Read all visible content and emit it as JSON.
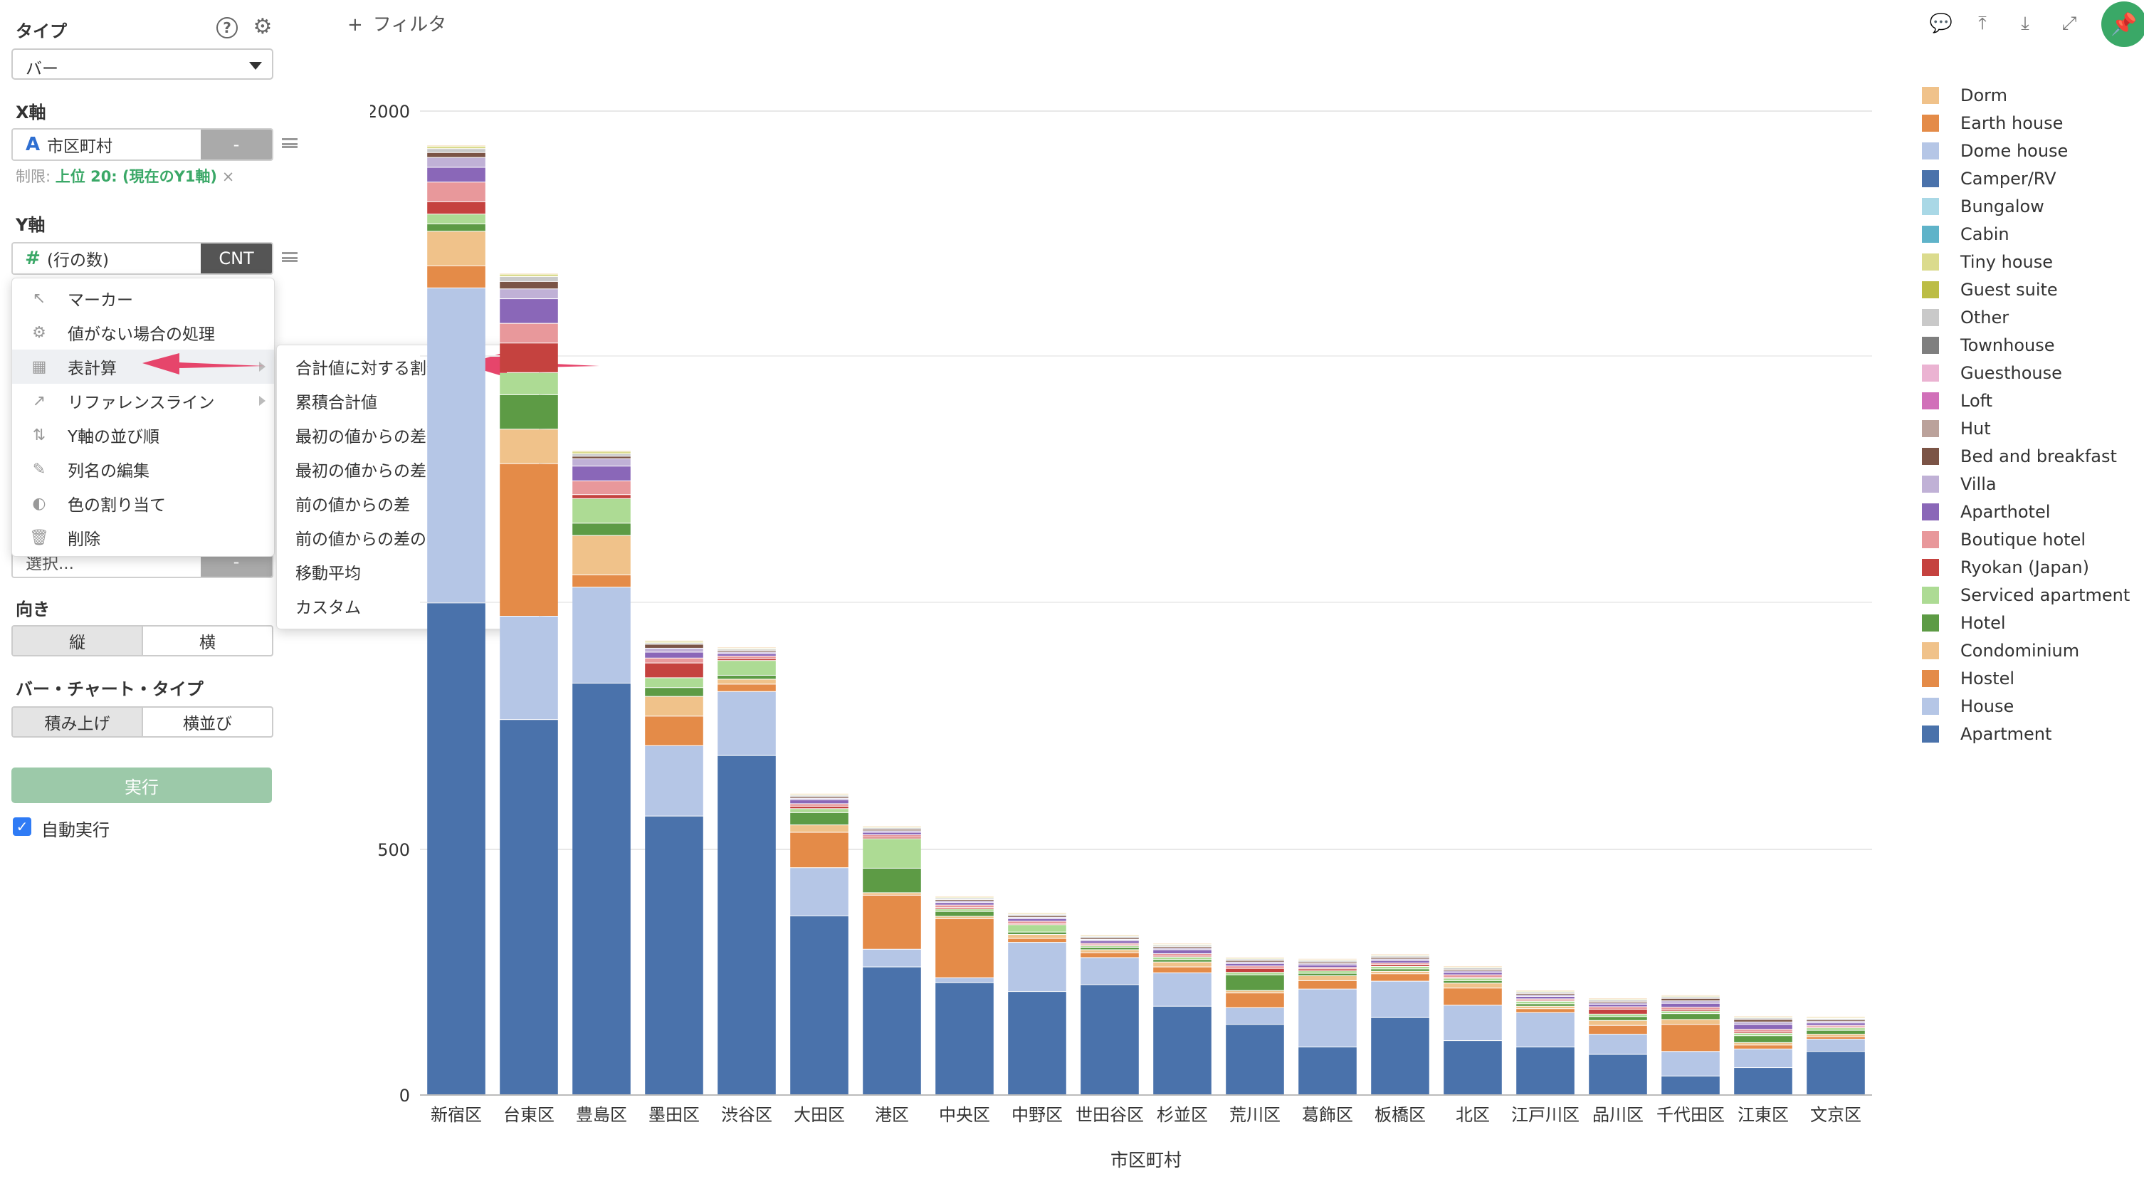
{
  "panel": {
    "type_label": "タイプ",
    "type_value": "バー",
    "x_label": "X軸",
    "x_field_icon": "A",
    "x_field": "市区町村",
    "x_agg": "-",
    "limit_prefix": "制限:",
    "limit_value": "上位 20: (現在のY1軸)",
    "limit_close": "×",
    "y_label": "Y軸",
    "y_field_icon": "#",
    "y_field": "(行の数)",
    "y_agg": "CNT",
    "hidden_select": "選択...",
    "hidden_agg": "-",
    "orientation_label": "向き",
    "orientation_options": [
      "縦",
      "横"
    ],
    "bar_type_label": "バー・チャート・タイプ",
    "bar_type_options": [
      "積み上げ",
      "横並び"
    ],
    "run_button": "実行",
    "auto_run": "自動実行"
  },
  "filter": {
    "plus": "+",
    "label": "フィルタ"
  },
  "context_menu": {
    "items": [
      {
        "icon": "cursor-icon",
        "label": "マーカー"
      },
      {
        "icon": "gear-icon",
        "label": "値がない場合の処理"
      },
      {
        "icon": "table-icon",
        "label": "表計算"
      },
      {
        "icon": "line-chart-icon",
        "label": "リファレンスライン"
      },
      {
        "icon": "sort-icon",
        "label": "Y軸の並び順"
      },
      {
        "icon": "edit-icon",
        "label": "列名の編集"
      },
      {
        "icon": "palette-icon",
        "label": "色の割り当て"
      },
      {
        "icon": "trash-icon",
        "label": "削除"
      }
    ]
  },
  "submenu": {
    "items": [
      "合計値に対する割合",
      "累積合計値",
      "最初の値からの差",
      "最初の値からの差の割合",
      "前の値からの差",
      "前の値からの差の割合",
      "移動平均",
      "カスタム"
    ]
  },
  "colors": {
    "accent_green": "#3aa867",
    "arrow_pink": "#e6456b",
    "run_button": "#9cc9a9"
  },
  "chart_data": {
    "type": "bar",
    "stacked": true,
    "xlabel": "市区町村",
    "ylabel": "",
    "ylim": [
      0,
      2000
    ],
    "y_ticks": [
      "0",
      "500",
      "2000"
    ],
    "categories": [
      "新宿区",
      "台東区",
      "豊島区",
      "墨田区",
      "渋谷区",
      "大田区",
      "港区",
      "中央区",
      "中野区",
      "世田谷区",
      "杉並区",
      "荒川区",
      "葛飾区",
      "板橋区",
      "北区",
      "江戸川区",
      "品川区",
      "千代田区",
      "江東区",
      "文京区"
    ],
    "series": [
      {
        "name": "Apartment",
        "color": "#4a72ab",
        "values": [
          1000,
          763,
          837,
          567,
          690,
          364,
          260,
          228,
          210,
          224,
          180,
          143,
          97,
          157,
          110,
          97,
          82,
          38,
          55,
          88
        ]
      },
      {
        "name": "House",
        "color": "#b5c6e6",
        "values": [
          640,
          210,
          195,
          143,
          130,
          98,
          36,
          10,
          100,
          55,
          68,
          34,
          118,
          74,
          72,
          70,
          41,
          50,
          38,
          25
        ]
      },
      {
        "name": "Hostel",
        "color": "#e48b48",
        "values": [
          45,
          310,
          25,
          60,
          15,
          72,
          110,
          120,
          8,
          10,
          12,
          30,
          17,
          15,
          35,
          8,
          18,
          55,
          8,
          5
        ]
      },
      {
        "name": "Condominium",
        "color": "#f0c28a",
        "values": [
          70,
          70,
          80,
          40,
          10,
          15,
          5,
          5,
          8,
          6,
          10,
          5,
          10,
          5,
          10,
          5,
          10,
          10,
          5,
          5
        ]
      },
      {
        "name": "Hotel",
        "color": "#5d9b45",
        "values": [
          15,
          70,
          25,
          18,
          8,
          25,
          50,
          10,
          5,
          5,
          5,
          32,
          5,
          5,
          5,
          5,
          8,
          12,
          14,
          8
        ]
      },
      {
        "name": "Serviced apartment",
        "color": "#addb94",
        "values": [
          20,
          45,
          50,
          20,
          30,
          8,
          60,
          5,
          15,
          3,
          5,
          5,
          5,
          5,
          5,
          5,
          5,
          5,
          5,
          5
        ]
      },
      {
        "name": "Ryokan (Japan)",
        "color": "#c5423f",
        "values": [
          25,
          60,
          8,
          30,
          4,
          5,
          3,
          3,
          2,
          2,
          2,
          8,
          4,
          4,
          2,
          2,
          10,
          3,
          3,
          2
        ]
      },
      {
        "name": "Boutique hotel",
        "color": "#e8989b",
        "values": [
          40,
          40,
          28,
          10,
          5,
          5,
          5,
          5,
          5,
          3,
          5,
          5,
          3,
          3,
          5,
          3,
          5,
          5,
          5,
          3
        ]
      },
      {
        "name": "Aparthotel",
        "color": "#8a67b8",
        "values": [
          30,
          50,
          30,
          12,
          5,
          8,
          5,
          5,
          5,
          5,
          8,
          5,
          5,
          5,
          5,
          5,
          5,
          8,
          10,
          5
        ]
      },
      {
        "name": "Villa",
        "color": "#c0b1d6",
        "values": [
          20,
          20,
          15,
          8,
          3,
          3,
          3,
          3,
          3,
          3,
          3,
          3,
          3,
          3,
          3,
          3,
          3,
          5,
          5,
          3
        ]
      },
      {
        "name": "Bed and breakfast",
        "color": "#7b5446",
        "values": [
          10,
          15,
          5,
          8,
          3,
          3,
          3,
          3,
          3,
          3,
          3,
          3,
          3,
          3,
          3,
          3,
          3,
          5,
          5,
          3
        ]
      },
      {
        "name": "Other",
        "color": "#c9c9c9",
        "values": [
          8,
          10,
          5,
          3,
          3,
          3,
          3,
          3,
          3,
          3,
          3,
          3,
          3,
          3,
          3,
          3,
          3,
          3,
          3,
          3
        ]
      },
      {
        "name": "Tiny house",
        "color": "#dbdb8d",
        "values": [
          5,
          5,
          5,
          3,
          2,
          2,
          2,
          2,
          2,
          2,
          2,
          2,
          2,
          2,
          2,
          2,
          2,
          2,
          2,
          2
        ]
      },
      {
        "name": "Dorm",
        "color": "#f0c28a",
        "values": [
          2,
          2,
          2,
          2,
          2,
          2,
          2,
          2,
          2,
          2,
          2,
          2,
          2,
          2,
          2,
          2,
          2,
          2,
          2,
          2
        ]
      }
    ],
    "legend": [
      {
        "name": "Dorm",
        "color": "#f0c28a"
      },
      {
        "name": "Earth house",
        "color": "#e48b48"
      },
      {
        "name": "Dome house",
        "color": "#b5c6e6"
      },
      {
        "name": "Camper/RV",
        "color": "#4a72ab"
      },
      {
        "name": "Bungalow",
        "color": "#a9d8e6"
      },
      {
        "name": "Cabin",
        "color": "#5fb3c9"
      },
      {
        "name": "Tiny house",
        "color": "#dbdb8d"
      },
      {
        "name": "Guest suite",
        "color": "#bcbd45"
      },
      {
        "name": "Other",
        "color": "#c9c9c9"
      },
      {
        "name": "Townhouse",
        "color": "#7f7f7f"
      },
      {
        "name": "Guesthouse",
        "color": "#ebb3d2"
      },
      {
        "name": "Loft",
        "color": "#d170b9"
      },
      {
        "name": "Hut",
        "color": "#bba29b"
      },
      {
        "name": "Bed and breakfast",
        "color": "#7b5446"
      },
      {
        "name": "Villa",
        "color": "#c0b1d6"
      },
      {
        "name": "Aparthotel",
        "color": "#8a67b8"
      },
      {
        "name": "Boutique hotel",
        "color": "#e8989b"
      },
      {
        "name": "Ryokan (Japan)",
        "color": "#c5423f"
      },
      {
        "name": "Serviced apartment",
        "color": "#addb94"
      },
      {
        "name": "Hotel",
        "color": "#5d9b45"
      },
      {
        "name": "Condominium",
        "color": "#f0c28a"
      },
      {
        "name": "Hostel",
        "color": "#e48b48"
      },
      {
        "name": "House",
        "color": "#b5c6e6"
      },
      {
        "name": "Apartment",
        "color": "#4a72ab"
      }
    ]
  }
}
